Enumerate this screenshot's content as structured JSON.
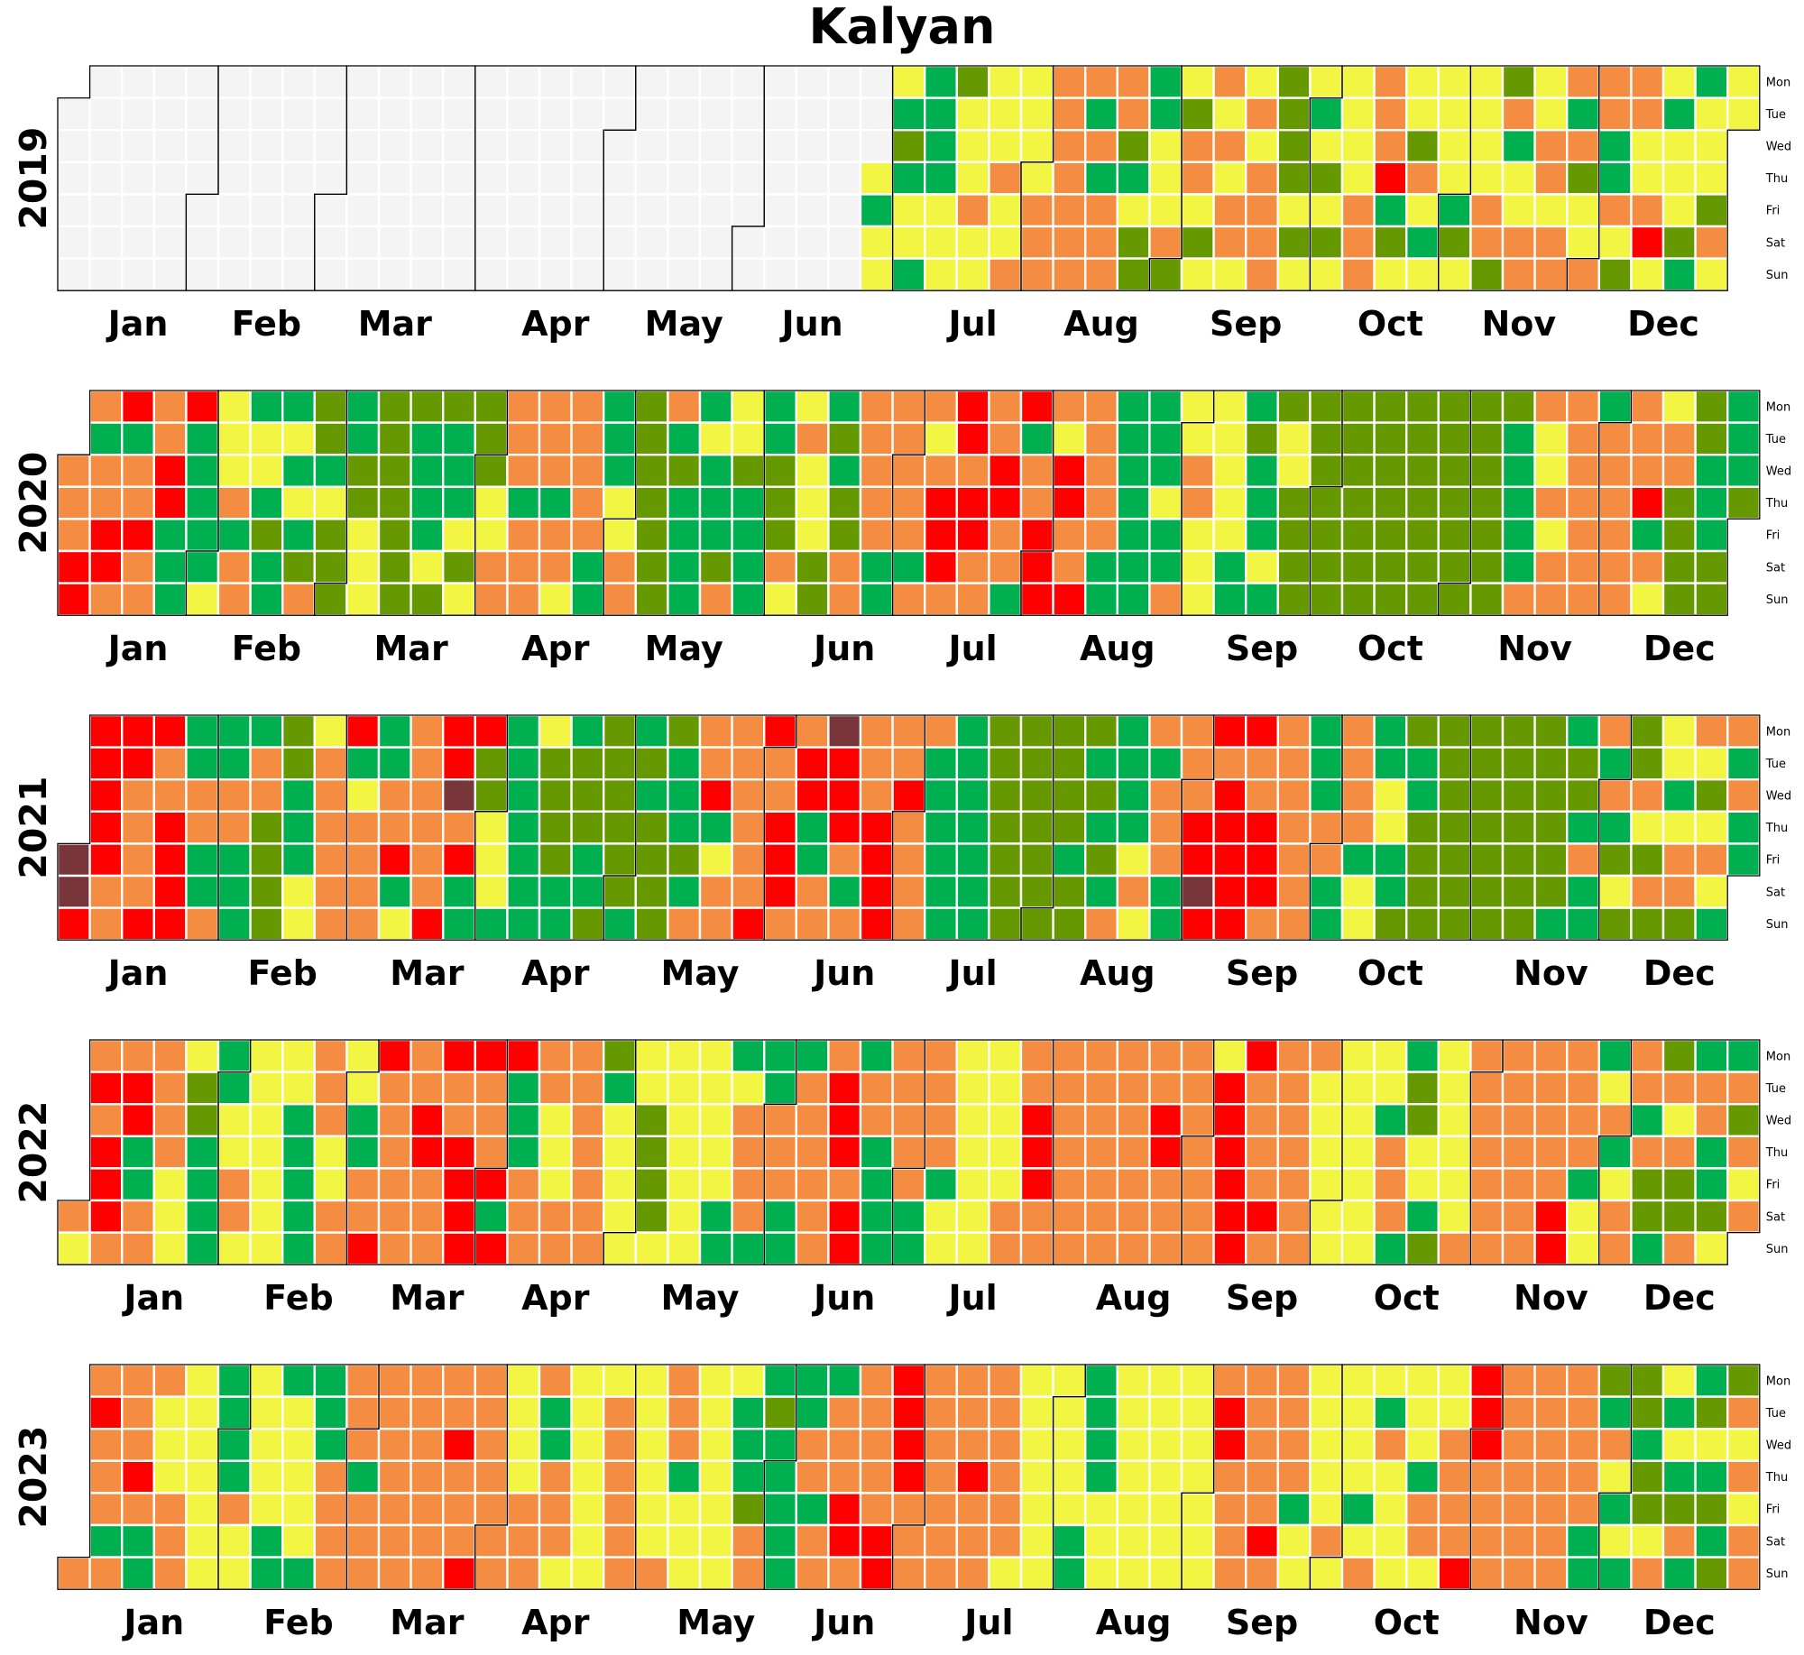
{
  "chart_data": {
    "type": "heatmap",
    "title": "Kalyan",
    "years": [
      2019,
      2020,
      2021,
      2022,
      2023
    ],
    "month_labels": [
      "Jan",
      "Feb",
      "Mar",
      "Apr",
      "May",
      "Jun",
      "Jul",
      "Aug",
      "Sep",
      "Oct",
      "Nov",
      "Dec"
    ],
    "day_labels": [
      "Mon",
      "Tue",
      "Wed",
      "Thu",
      "Fri",
      "Sat",
      "Sun"
    ],
    "colors": {
      "0": "#f4f4f4",
      "1": "#009e4f",
      "2": "#00b050",
      "3": "#669900",
      "4": "#f2f542",
      "5": "#f48c42",
      "6": "#ff0000",
      "7": "#78363a"
    },
    "cell_colors": {
      "no_data": "#f4f4f4",
      "good": "#00b050",
      "satisfactory": "#669900",
      "moderate": "#f2f542",
      "poor": "#f48c42",
      "very_poor": "#ff0000",
      "severe": "#78363a"
    },
    "first_data_date_2019": "2019-06-27",
    "weeks_per_year": 53,
    "data": {
      "2019": [
        "4244423244222224443444544444544544445555555555525255555",
        "3243322444534355434545455445455553333434424343444445555556",
        "2344435424444423444445533524455445545552534455522543554456",
        "4424443224443544455545456545445555554555554255555555222325"
      ],
      "2020": [
        "555665255665625565555662226222224444525524423222424235332433322334443333333322224332224343334455555255555525545",
        "5555222224455333333352322222422235443222222333544544433232335555555225555525545666",
        "5665665555665526255666546655655555222222222222422544554444444422232224234433333333333333333333333333333333333333333333333222225544545555555552555555555",
        "62544553333332223322233333333333342225532345452555555566555555665555566"
      ],
      "2021": [
        "7766666655665555665566662255225225522225533333322244455555562455552255624555555666",
        "7562263344422222222433332223332233333332232333332223255562455555555665566655662255",
        "7666525555666655655555222222222222233333333333333333323332323252222454525552255566",
        "7665666666556665555555522255225555244224422332233333333333333333333333333333332233"
      ],
      "2022": [
        "5456566655662255555544443322222244554444444444222225554455442255665555555566555655",
        "6666655562662225555544455555555532444444433334444444444444222455552225552225555555",
        "6665662552222555552255552444444444444445555666555555555555555555555555566555555555",
        "5466666665555655555555544444444444444425552233442344444455555555555555555555665555"
      ],
      "2023": [
        "5565552555565225444555444444422225444444422244444222255555552555555555555555555565",
        "5565555555444455552255544444444455555544444455552444444444442223552322222225525525",
        "5566555555666666555555555555565555555554444444444444222222444444444444444444444444",
        "5665555555556555552444444454444424542544444442554445555666655555555555555555555555"
      ]
    }
  }
}
